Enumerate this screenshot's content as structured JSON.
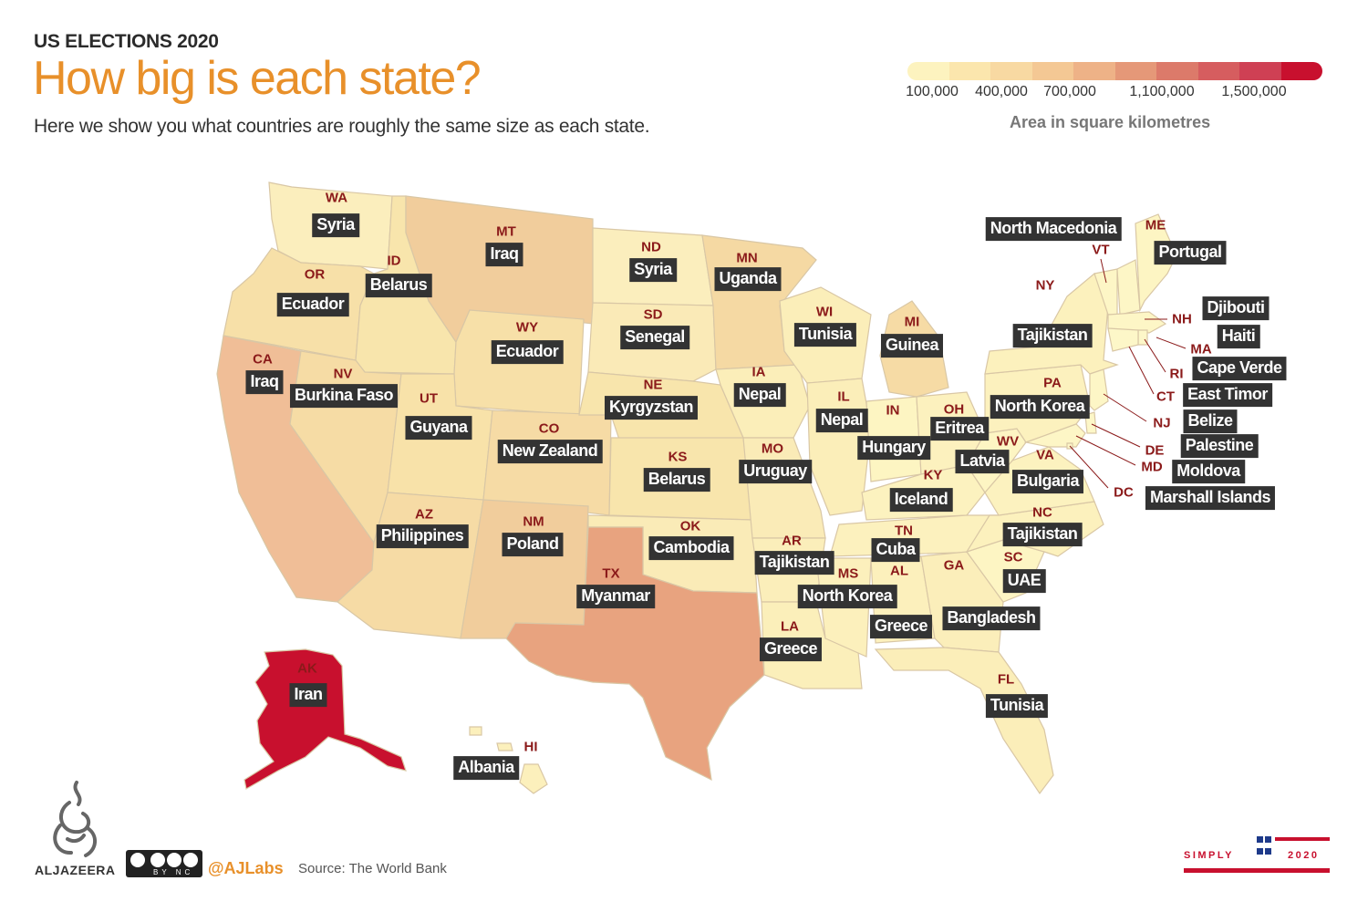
{
  "header": {
    "kicker": "US ELECTIONS 2020",
    "title": "How big is each state?",
    "subtitle": "Here we show you what countries are roughly the same size as each state."
  },
  "legend": {
    "ticks": [
      "100,000",
      "400,000",
      "700,000",
      "1,100,000",
      "1,500,000"
    ],
    "title": "Area in square kilometres",
    "colors": [
      "#fdf3bf",
      "#fbe6ad",
      "#f8d9a2",
      "#f4c894",
      "#eeb287",
      "#e59878",
      "#dc7a6a",
      "#d65d5f",
      "#cf4054",
      "#c8102e"
    ]
  },
  "states": [
    {
      "abbr": "WA",
      "country": "Syria",
      "color": "#fbeebd"
    },
    {
      "abbr": "OR",
      "country": "Ecuador",
      "color": "#f7e0a8"
    },
    {
      "abbr": "CA",
      "country": "Iraq",
      "color": "#f0be97"
    },
    {
      "abbr": "ID",
      "country": "Belarus",
      "color": "#f8e5ac"
    },
    {
      "abbr": "NV",
      "country": "Burkina Faso",
      "color": "#f6dca5"
    },
    {
      "abbr": "MT",
      "country": "Iraq",
      "color": "#f1cd9c"
    },
    {
      "abbr": "WY",
      "country": "Ecuador",
      "color": "#f7e0a8"
    },
    {
      "abbr": "UT",
      "country": "Guyana",
      "color": "#f8e2a9"
    },
    {
      "abbr": "CO",
      "country": "New Zealand",
      "color": "#f6dba5"
    },
    {
      "abbr": "AZ",
      "country": "Philippines",
      "color": "#f6dba5"
    },
    {
      "abbr": "NM",
      "country": "Poland",
      "color": "#f1cd9c"
    },
    {
      "abbr": "ND",
      "country": "Syria",
      "color": "#fbeebd"
    },
    {
      "abbr": "SD",
      "country": "Senegal",
      "color": "#faeab7"
    },
    {
      "abbr": "NE",
      "country": "Kyrgyzstan",
      "color": "#f8e5ac"
    },
    {
      "abbr": "KS",
      "country": "Belarus",
      "color": "#f8e5ac"
    },
    {
      "abbr": "OK",
      "country": "Cambodia",
      "color": "#faebb7"
    },
    {
      "abbr": "TX",
      "country": "Myanmar",
      "color": "#e8a37f"
    },
    {
      "abbr": "MN",
      "country": "Uganda",
      "color": "#f5d9a3"
    },
    {
      "abbr": "IA",
      "country": "Nepal",
      "color": "#fbeeb9"
    },
    {
      "abbr": "MO",
      "country": "Uruguay",
      "color": "#faebb7"
    },
    {
      "abbr": "AR",
      "country": "Tajikistan",
      "color": "#fbeeba"
    },
    {
      "abbr": "LA",
      "country": "Greece",
      "color": "#fbefba"
    },
    {
      "abbr": "WI",
      "country": "Tunisia",
      "color": "#fbeeb9"
    },
    {
      "abbr": "IL",
      "country": "Nepal",
      "color": "#fbeeb9"
    },
    {
      "abbr": "MI",
      "country": "Guinea",
      "color": "#f6dba5"
    },
    {
      "abbr": "IN",
      "country": "Hungary",
      "color": "#fdf5c2"
    },
    {
      "abbr": "OH",
      "country": "Eritrea",
      "color": "#fcf1be"
    },
    {
      "abbr": "KY",
      "country": "Iceland",
      "color": "#fcf2bf"
    },
    {
      "abbr": "TN",
      "country": "Cuba",
      "color": "#fcf1be"
    },
    {
      "abbr": "MS",
      "country": "North Korea",
      "color": "#fcf0bc"
    },
    {
      "abbr": "AL",
      "country": "Greece",
      "color": "#fcf0bc"
    },
    {
      "abbr": "GA",
      "country": "Bangladesh",
      "color": "#fbeeba"
    },
    {
      "abbr": "FL",
      "country": "Tunisia",
      "color": "#fbeeb9"
    },
    {
      "abbr": "SC",
      "country": "UAE",
      "color": "#fdf5c3"
    },
    {
      "abbr": "NC",
      "country": "Tajikistan",
      "color": "#fcf1bd"
    },
    {
      "abbr": "VA",
      "country": "Bulgaria",
      "color": "#fcf2bf"
    },
    {
      "abbr": "WV",
      "country": "Latvia",
      "color": "#fdf5c3"
    },
    {
      "abbr": "PA",
      "country": "North Korea",
      "color": "#fcf1be"
    },
    {
      "abbr": "NY",
      "country": "Tajikistan",
      "color": "#fcf1bd"
    },
    {
      "abbr": "VT",
      "country": "North Macedonia",
      "color": "#fdf6c6"
    },
    {
      "abbr": "ME",
      "country": "Portugal",
      "color": "#fdf5c3"
    },
    {
      "abbr": "NH",
      "country": "Djibouti",
      "color": "#fdf6c6"
    },
    {
      "abbr": "MA",
      "country": "Haiti",
      "color": "#fdf6c6"
    },
    {
      "abbr": "RI",
      "country": "Cape Verde",
      "color": "#fdf7c8"
    },
    {
      "abbr": "CT",
      "country": "East Timor",
      "color": "#fdf7c8"
    },
    {
      "abbr": "NJ",
      "country": "Belize",
      "color": "#fdf6c6"
    },
    {
      "abbr": "DE",
      "country": "Palestine",
      "color": "#fdf7c8"
    },
    {
      "abbr": "MD",
      "country": "Moldova",
      "color": "#fdf6c6"
    },
    {
      "abbr": "DC",
      "country": "Marshall Islands",
      "color": "#fdf7c8"
    },
    {
      "abbr": "AK",
      "country": "Iran",
      "color": "#c8102e"
    },
    {
      "abbr": "HI",
      "country": "Albania",
      "color": "#fcf0bc"
    }
  ],
  "footer": {
    "brand": "ALJAZEERA",
    "license": "BY NC SA",
    "handle": "@AJLabs",
    "source": "Source: The World Bank",
    "campaign": "SIMPLY",
    "year": "2020"
  }
}
